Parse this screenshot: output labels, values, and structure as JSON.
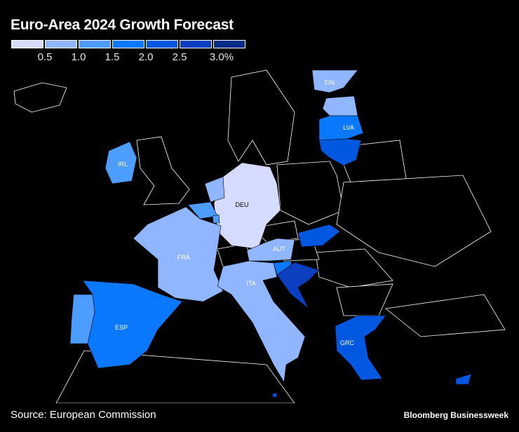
{
  "title": "Euro-Area 2024 Growth Forecast",
  "legend": {
    "colors": [
      "#d6dcff",
      "#8fb6ff",
      "#4d9cff",
      "#0a78ff",
      "#0057e0",
      "#0b3fbf",
      "#062c88"
    ],
    "ticks": [
      "0.5",
      "1.0",
      "1.5",
      "2.0",
      "2.5",
      "3.0%"
    ]
  },
  "countries": [
    {
      "code": "FIN",
      "label": "FIN",
      "bin": 1
    },
    {
      "code": "EST",
      "label": "",
      "bin": 1
    },
    {
      "code": "LVA",
      "label": "LVA",
      "bin": 3
    },
    {
      "code": "LTU",
      "label": "",
      "bin": 4
    },
    {
      "code": "IRL",
      "label": "IRL",
      "bin": 2
    },
    {
      "code": "DEU",
      "label": "DEU",
      "bin": 0
    },
    {
      "code": "NLD",
      "label": "",
      "bin": 1
    },
    {
      "code": "BEL",
      "label": "",
      "bin": 2
    },
    {
      "code": "LUX",
      "label": "",
      "bin": 2
    },
    {
      "code": "FRA",
      "label": "FRA",
      "bin": 1
    },
    {
      "code": "AUT",
      "label": "AUT",
      "bin": 1
    },
    {
      "code": "SVK",
      "label": "",
      "bin": 4
    },
    {
      "code": "SVN",
      "label": "",
      "bin": 3
    },
    {
      "code": "HRV",
      "label": "",
      "bin": 5
    },
    {
      "code": "ITA",
      "label": "ITA",
      "bin": 1
    },
    {
      "code": "ESP",
      "label": "ESP",
      "bin": 3
    },
    {
      "code": "PRT",
      "label": "",
      "bin": 2
    },
    {
      "code": "GRC",
      "label": "GRC",
      "bin": 4
    },
    {
      "code": "CYP",
      "label": "",
      "bin": 4
    },
    {
      "code": "MLT",
      "label": "",
      "bin": 4
    }
  ],
  "source": "Source: European Commission",
  "brand": "Bloomberg Businessweek"
}
